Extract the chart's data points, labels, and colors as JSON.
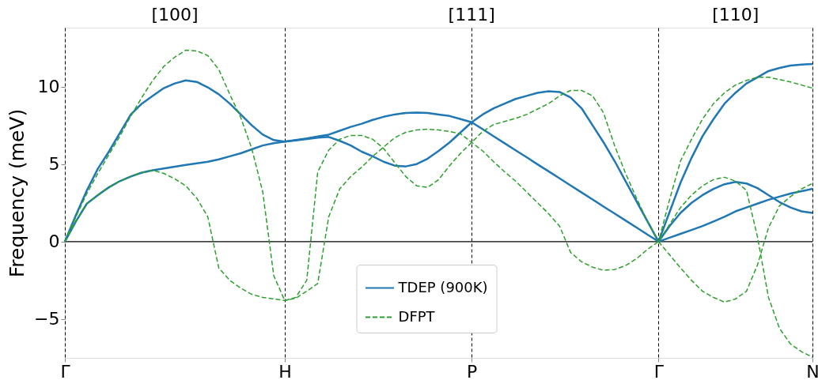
{
  "chart_data": {
    "type": "line",
    "ylabel": "Frequency (meV)",
    "categories": [
      "Γ",
      null,
      null,
      null,
      null,
      null,
      null,
      null,
      null,
      null,
      null,
      null,
      null,
      null,
      null,
      null,
      null,
      null,
      null,
      null,
      "H",
      null,
      null,
      null,
      null,
      null,
      null,
      null,
      null,
      null,
      null,
      null,
      null,
      null,
      null,
      null,
      null,
      "P",
      null,
      null,
      null,
      null,
      null,
      null,
      null,
      null,
      null,
      null,
      null,
      null,
      null,
      null,
      null,
      null,
      "Γ",
      null,
      null,
      null,
      null,
      null,
      null,
      null,
      null,
      null,
      null,
      null,
      null,
      null,
      "N"
    ],
    "annotations": [
      "[100]",
      "[111]",
      "[110]"
    ],
    "ylim": [
      -7.5,
      13.8
    ],
    "yticks": [
      -5,
      0,
      5,
      10
    ],
    "grid": "x",
    "legend": "bottom",
    "ref_lines": [
      {
        "axis": "y",
        "value": 0,
        "color": "#000000",
        "line_style": "solid"
      }
    ],
    "series": [
      {
        "name": "TDEP (900K)",
        "color": "#1f77b4",
        "line_style": "solid",
        "values": [
          0,
          1.7,
          3.3,
          4.7,
          5.8,
          7.0,
          8.2,
          8.9,
          9.4,
          9.9,
          10.2,
          10.4,
          10.3,
          9.95,
          9.5,
          8.9,
          8.2,
          7.5,
          6.9,
          6.55,
          6.45,
          6.55,
          6.65,
          6.78,
          6.9,
          7.15,
          7.4,
          7.6,
          7.85,
          8.05,
          8.2,
          8.3,
          8.32,
          8.3,
          8.2,
          8.1,
          7.9,
          7.7,
          8.2,
          8.6,
          8.9,
          9.2,
          9.4,
          9.6,
          9.7,
          9.65,
          9.3,
          8.6,
          7.5,
          6.4,
          5.2,
          3.9,
          2.6,
          1.3,
          0,
          1.9,
          3.8,
          5.4,
          6.8,
          7.9,
          8.9,
          9.6,
          10.2,
          10.6,
          11.0,
          11.2,
          11.35,
          11.42,
          11.45
        ]
      },
      {
        "color": "#1f77b4",
        "line_style": "solid",
        "values": [
          0,
          1.3,
          2.45,
          3.0,
          3.5,
          3.9,
          4.2,
          4.45,
          4.6,
          4.72,
          4.83,
          4.95,
          5.05,
          5.15,
          5.3,
          5.5,
          5.7,
          5.95,
          6.2,
          6.35,
          6.45,
          6.52,
          6.62,
          6.7,
          6.75,
          6.5,
          6.2,
          5.8,
          5.5,
          5.15,
          4.9,
          4.85,
          5.0,
          5.35,
          5.85,
          6.4,
          7.05,
          7.7,
          7.25,
          6.79,
          6.34,
          5.89,
          5.44,
          4.98,
          4.53,
          4.08,
          3.62,
          3.17,
          2.72,
          2.26,
          1.81,
          1.36,
          0.91,
          0.45,
          0,
          1.0,
          1.85,
          2.5,
          3.0,
          3.4,
          3.7,
          3.85,
          3.75,
          3.45,
          3.0,
          2.55,
          2.2,
          1.95,
          1.85
        ]
      },
      {
        "color": "#1f77b4",
        "line_style": "solid",
        "values": [
          null,
          null,
          null,
          null,
          null,
          null,
          null,
          null,
          null,
          null,
          null,
          null,
          null,
          null,
          null,
          null,
          null,
          null,
          null,
          null,
          null,
          null,
          null,
          null,
          null,
          null,
          null,
          null,
          null,
          null,
          null,
          null,
          null,
          null,
          null,
          null,
          null,
          null,
          null,
          null,
          null,
          null,
          null,
          null,
          null,
          null,
          null,
          null,
          null,
          null,
          null,
          null,
          null,
          null,
          0,
          0.25,
          0.5,
          0.75,
          1.0,
          1.3,
          1.6,
          1.95,
          2.2,
          2.45,
          2.7,
          2.9,
          3.1,
          3.25,
          3.4
        ]
      },
      {
        "name": "DFPT",
        "color": "#2ca02c",
        "line_style": "dashed",
        "values": [
          0,
          1.6,
          3.1,
          4.4,
          5.6,
          6.8,
          8.1,
          9.3,
          10.4,
          11.3,
          11.9,
          12.35,
          12.3,
          12.0,
          11.1,
          9.5,
          8.0,
          6.0,
          3.2,
          -2.2,
          -3.8,
          -3.6,
          -2.5,
          4.5,
          5.9,
          6.6,
          6.85,
          6.85,
          6.6,
          6.0,
          5.1,
          4.2,
          3.6,
          3.5,
          4.0,
          4.9,
          5.7,
          6.4,
          7.1,
          7.55,
          7.75,
          7.95,
          8.2,
          8.55,
          8.9,
          9.4,
          9.75,
          9.75,
          9.4,
          8.3,
          6.2,
          4.4,
          2.8,
          1.3,
          0,
          2.7,
          5.2,
          6.6,
          7.9,
          8.9,
          9.6,
          10.1,
          10.4,
          10.6,
          10.6,
          10.45,
          10.3,
          10.1,
          9.9
        ]
      },
      {
        "color": "#2ca02c",
        "line_style": "dashed",
        "values": [
          0,
          1.3,
          2.45,
          3.0,
          3.5,
          3.9,
          4.2,
          4.45,
          4.6,
          4.4,
          4.05,
          3.6,
          2.8,
          1.6,
          -1.7,
          -2.5,
          -3.0,
          -3.4,
          -3.6,
          -3.7,
          -3.8,
          -3.65,
          -3.2,
          -2.7,
          1.6,
          3.4,
          4.2,
          4.8,
          5.5,
          6.1,
          6.7,
          7.05,
          7.2,
          7.25,
          7.2,
          7.1,
          6.95,
          6.4,
          5.85,
          5.15,
          4.5,
          3.9,
          3.2,
          2.5,
          1.8,
          1.0,
          -0.7,
          -1.3,
          -1.65,
          -1.85,
          -1.8,
          -1.55,
          -1.1,
          -0.5,
          0,
          1.1,
          2.2,
          3.0,
          3.6,
          4.0,
          4.15,
          3.9,
          3.3,
          0.3,
          -3.6,
          -5.6,
          -6.6,
          -7.1,
          -7.45
        ]
      },
      {
        "color": "#2ca02c",
        "line_style": "dashed",
        "values": [
          null,
          null,
          null,
          null,
          null,
          null,
          null,
          null,
          null,
          null,
          null,
          null,
          null,
          null,
          null,
          null,
          null,
          null,
          null,
          null,
          null,
          null,
          null,
          null,
          null,
          null,
          null,
          null,
          null,
          null,
          null,
          null,
          null,
          null,
          null,
          null,
          null,
          null,
          null,
          null,
          null,
          null,
          null,
          null,
          null,
          null,
          null,
          null,
          null,
          null,
          null,
          null,
          null,
          null,
          0,
          -0.85,
          -1.7,
          -2.5,
          -3.2,
          -3.6,
          -3.9,
          -3.7,
          -3.2,
          -1.5,
          0.9,
          2.3,
          2.9,
          3.4,
          3.75
        ]
      }
    ]
  }
}
